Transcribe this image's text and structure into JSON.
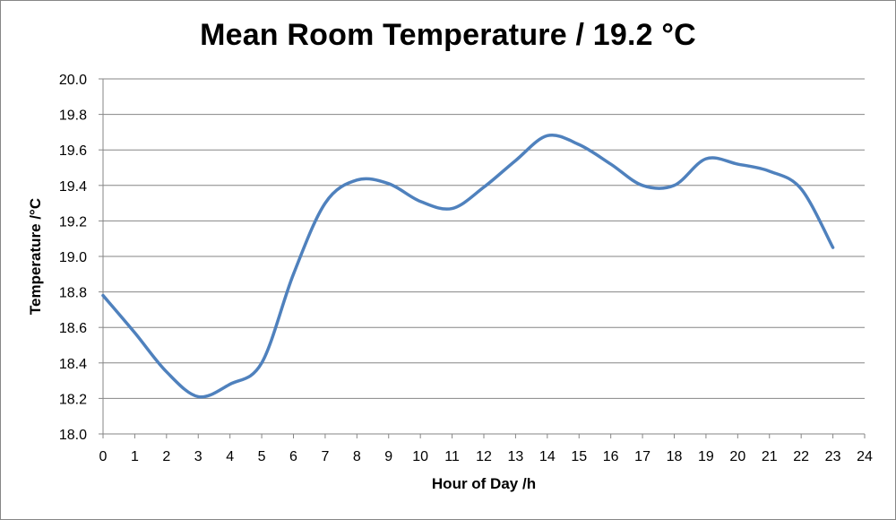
{
  "chart_data": {
    "type": "line",
    "title": "Mean Room Temperature / 19.2 °C",
    "xlabel": "Hour of Day /h",
    "ylabel": "Temperature /°C",
    "xlim": [
      0,
      24
    ],
    "ylim": [
      18.0,
      20.0
    ],
    "x_ticks": [
      "0",
      "1",
      "2",
      "3",
      "4",
      "5",
      "6",
      "7",
      "8",
      "9",
      "10",
      "11",
      "12",
      "13",
      "14",
      "15",
      "16",
      "17",
      "18",
      "19",
      "20",
      "21",
      "22",
      "23",
      "24"
    ],
    "y_ticks": [
      "18.0",
      "18.2",
      "18.4",
      "18.6",
      "18.8",
      "19.0",
      "19.2",
      "19.4",
      "19.6",
      "19.8",
      "20.0"
    ],
    "grid": "horizontal",
    "legend": "none",
    "line_color": "#4f81bd",
    "series": [
      {
        "x": [
          0,
          1,
          2,
          3,
          4,
          5,
          6,
          7,
          8,
          9,
          10,
          11,
          12,
          13,
          14,
          15,
          16,
          17,
          18,
          19,
          20,
          21,
          22,
          23
        ],
        "values": [
          18.78,
          18.57,
          18.35,
          18.21,
          18.28,
          18.4,
          18.9,
          19.3,
          19.43,
          19.41,
          19.31,
          19.27,
          19.39,
          19.54,
          19.68,
          19.63,
          19.52,
          19.4,
          19.4,
          19.55,
          19.52,
          19.48,
          19.38,
          19.05
        ]
      }
    ]
  }
}
